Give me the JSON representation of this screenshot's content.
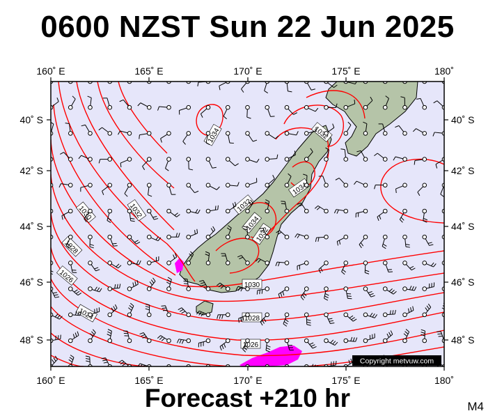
{
  "header": {
    "title": "0600 NZST Sun 22 Jun 2025"
  },
  "footer": {
    "label": "Forecast +210 hr",
    "model": "M4"
  },
  "axes": {
    "lon_labels": [
      "160˚ E",
      "165˚ E",
      "170˚ E",
      "175˚ E",
      "180˚"
    ],
    "lat_labels": [
      "40˚ S",
      "42˚ S",
      "44˚ S",
      "46˚ S",
      "48˚ S"
    ]
  },
  "isobar_labels": [
    "1034",
    "1032",
    "1034",
    "1032",
    "1034",
    "1032",
    "1030",
    "1032",
    "1030",
    "1028",
    "1026",
    "1024",
    "1028",
    "1026"
  ],
  "copyright": "Copyright metvuw.com",
  "colors": {
    "ocean": "#e6e6fa",
    "isobar": "#ff0000",
    "land": "#b5c4a8",
    "precip": "#ff00ff"
  }
}
